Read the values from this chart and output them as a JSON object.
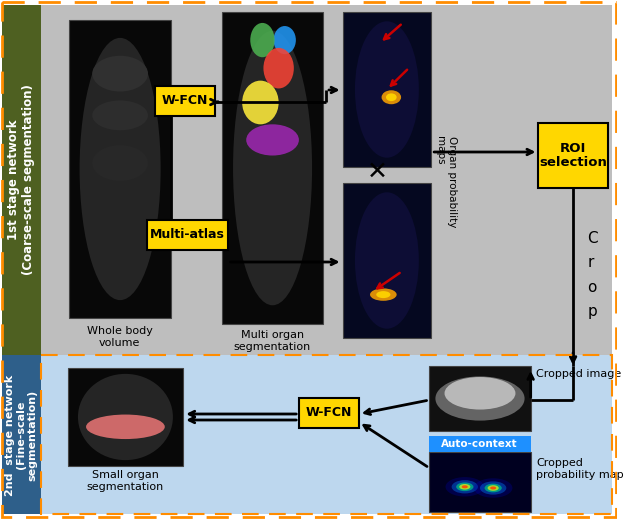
{
  "fig_width": 6.4,
  "fig_height": 5.19,
  "dpi": 100,
  "orange_border": "#FF8C00",
  "stage1_bg": "#BEBEBE",
  "stage2_bg": "#BDD7EE",
  "green_sidebar": "#4E6021",
  "blue_sidebar": "#2E5F8A",
  "yellow": "#FFD700",
  "autocontext_blue": "#1E90FF",
  "white": "#FFFFFF",
  "black": "#000000",
  "red_arrow": "#CC0000",
  "stage1_text": "1st stage network\n(Coarse-scale segmentation)",
  "stage2_text": "2nd  stage network\n(Fine-scale\nsegmentation)",
  "wfcn_text": "W-FCN",
  "multiatlas_text": "Multi-atlas",
  "roi_text": "ROI\nselection",
  "crop_text": "C\nr\no\np",
  "multi_organ_text": "Multi organ\nsegmentation",
  "whole_body_text": "Whole body\nvolume",
  "small_organ_text": "Small organ\nsegmentation",
  "organ_prob_text": "Organ probability\nmaps",
  "cropped_image_text": "Cropped image",
  "autocontext_text": "Auto-context",
  "cropped_prob_text": "Cropped\nprobability map"
}
